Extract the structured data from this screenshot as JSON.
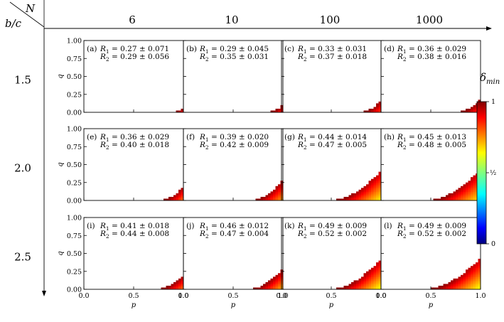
{
  "header": {
    "corner_top": "N",
    "corner_bottom": "b/c",
    "columns": [
      "6",
      "10",
      "100",
      "1000"
    ],
    "rows": [
      "1.5",
      "2.0",
      "2.5"
    ]
  },
  "axes": {
    "xlabel": "p",
    "ylabel": "q",
    "xticks": [
      "0.0",
      "0.5",
      "1.0"
    ],
    "yticks": [
      "0.00",
      "0.25",
      "0.50",
      "0.75",
      "1.00"
    ]
  },
  "colorbar": {
    "label": "δmin",
    "label_main": "δ",
    "label_sub": "min",
    "ticks": [
      "1",
      "½",
      "0"
    ],
    "colormap": "jet",
    "colors": [
      "#00007f",
      "#0000ff",
      "#00ffff",
      "#ffff00",
      "#ff0000",
      "#7f0000"
    ]
  },
  "chart_data": {
    "type": "heatmap",
    "xlabel": "p",
    "ylabel": "q",
    "xlim": [
      0,
      1
    ],
    "ylim": [
      0,
      1
    ],
    "colorbar_range": [
      0,
      1
    ],
    "panels": [
      {
        "id": "(a)",
        "N": 6,
        "b_over_c": 1.5,
        "R1": "R_1 = 0.27 ± 0.071",
        "R2": "R_2 = 0.29 ± 0.056",
        "region_p_start": 0.93,
        "q_at_p1": 0.05,
        "delta_min_range": [
          0.85,
          1.0
        ]
      },
      {
        "id": "(b)",
        "N": 10,
        "b_over_c": 1.5,
        "R1": "R_1 = 0.29 ± 0.045",
        "R2": "R_2 = 0.35 ± 0.031",
        "region_p_start": 0.88,
        "q_at_p1": 0.09,
        "delta_min_range": [
          0.8,
          1.0
        ]
      },
      {
        "id": "(c)",
        "N": 100,
        "b_over_c": 1.5,
        "R1": "R_1 = 0.33 ± 0.031",
        "R2": "R_2 = 0.37 ± 0.018",
        "region_p_start": 0.83,
        "q_at_p1": 0.15,
        "delta_min_range": [
          0.8,
          1.0
        ]
      },
      {
        "id": "(d)",
        "N": 1000,
        "b_over_c": 1.5,
        "R1": "R_1 = 0.36 ± 0.029",
        "R2": "R_2 = 0.38 ± 0.016",
        "region_p_start": 0.8,
        "q_at_p1": 0.17,
        "delta_min_range": [
          0.8,
          1.0
        ]
      },
      {
        "id": "(e)",
        "N": 6,
        "b_over_c": 2.0,
        "R1": "R_1 = 0.36 ± 0.029",
        "R2": "R_2 = 0.40 ± 0.018",
        "region_p_start": 0.8,
        "q_at_p1": 0.18,
        "delta_min_range": [
          0.75,
          1.0
        ]
      },
      {
        "id": "(f)",
        "N": 10,
        "b_over_c": 2.0,
        "R1": "R_1 = 0.39 ± 0.020",
        "R2": "R_2 = 0.42 ± 0.009",
        "region_p_start": 0.72,
        "q_at_p1": 0.27,
        "delta_min_range": [
          0.7,
          1.0
        ]
      },
      {
        "id": "(g)",
        "N": 100,
        "b_over_c": 2.0,
        "R1": "R_1 = 0.44 ± 0.014",
        "R2": "R_2 = 0.47 ± 0.005",
        "region_p_start": 0.55,
        "q_at_p1": 0.4,
        "delta_min_range": [
          0.62,
          1.0
        ]
      },
      {
        "id": "(h)",
        "N": 1000,
        "b_over_c": 2.0,
        "R1": "R_1 = 0.45 ± 0.013",
        "R2": "R_2 = 0.48 ± 0.005",
        "region_p_start": 0.52,
        "q_at_p1": 0.42,
        "delta_min_range": [
          0.62,
          1.0
        ]
      },
      {
        "id": "(i)",
        "N": 6,
        "b_over_c": 2.5,
        "R1": "R_1 = 0.41 ± 0.018",
        "R2": "R_2 = 0.44 ± 0.008",
        "region_p_start": 0.77,
        "q_at_p1": 0.18,
        "delta_min_range": [
          0.75,
          1.0
        ]
      },
      {
        "id": "(j)",
        "N": 10,
        "b_over_c": 2.5,
        "R1": "R_1 = 0.46 ± 0.012",
        "R2": "R_2 = 0.47 ± 0.004",
        "region_p_start": 0.7,
        "q_at_p1": 0.27,
        "delta_min_range": [
          0.68,
          1.0
        ]
      },
      {
        "id": "(k)",
        "N": 100,
        "b_over_c": 2.5,
        "R1": "R_1 = 0.49 ± 0.009",
        "R2": "R_2 = 0.52 ± 0.002",
        "region_p_start": 0.55,
        "q_at_p1": 0.41,
        "delta_min_range": [
          0.6,
          1.0
        ]
      },
      {
        "id": "(l)",
        "N": 1000,
        "b_over_c": 2.5,
        "R1": "R_1 = 0.49 ± 0.009",
        "R2": "R_2 = 0.52 ± 0.002",
        "region_p_start": 0.5,
        "q_at_p1": 0.42,
        "delta_min_range": [
          0.6,
          1.0
        ]
      }
    ]
  }
}
